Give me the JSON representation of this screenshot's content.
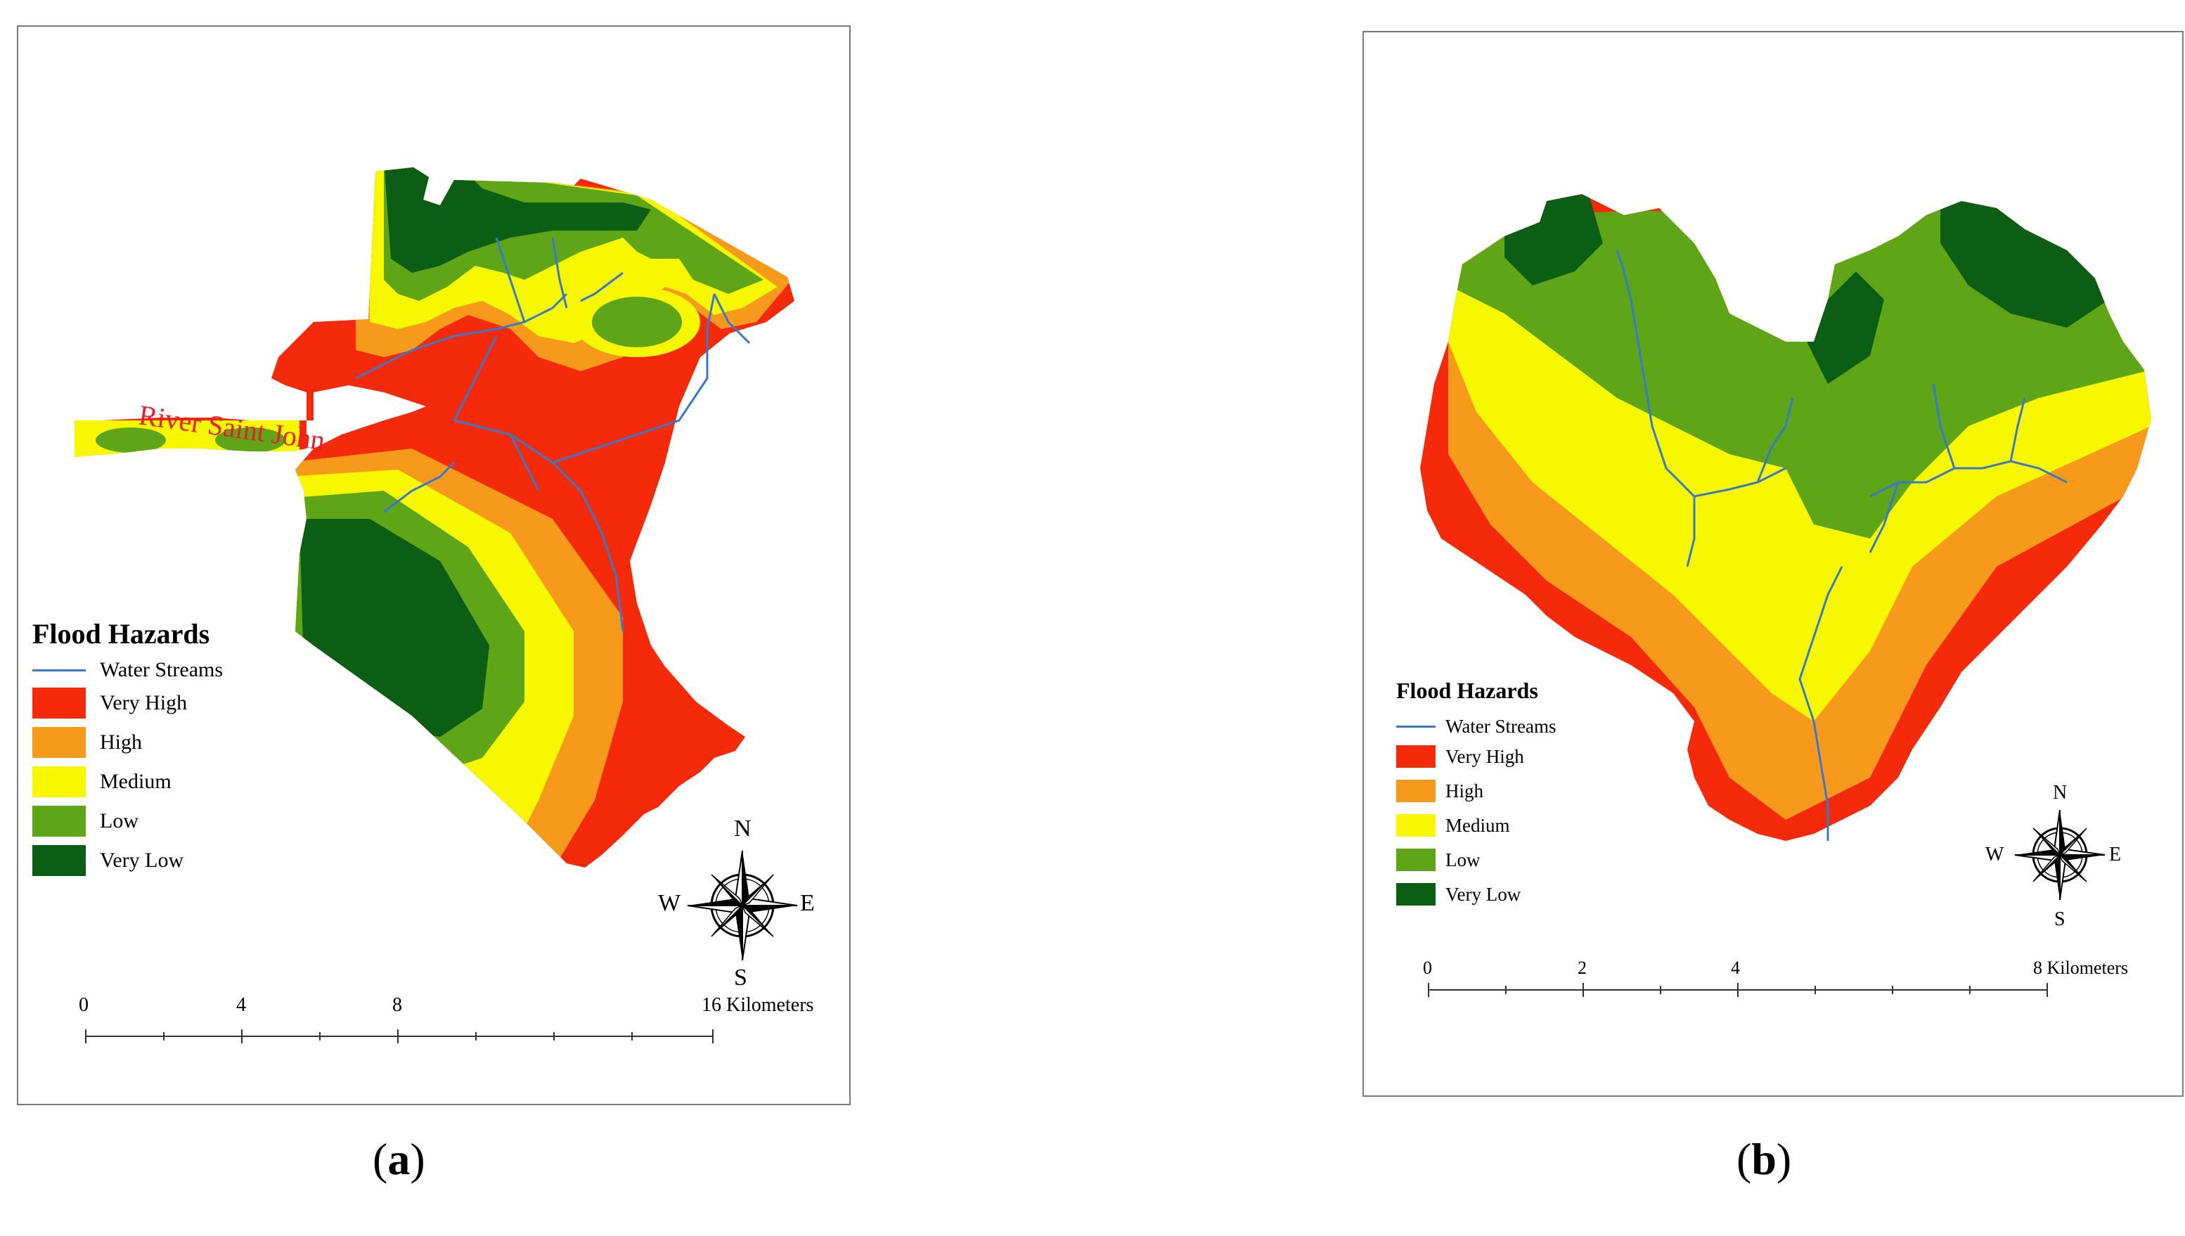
{
  "panels": [
    {
      "id": "a",
      "caption_open": "(",
      "caption_letter": "a",
      "caption_close": ")",
      "river_label": "River Saint John",
      "legend": {
        "title": "Flood Hazards",
        "stream_label": "Water Streams",
        "classes": [
          {
            "label": "Very High",
            "color": "#f52a0a"
          },
          {
            "label": "High",
            "color": "#f79a1c"
          },
          {
            "label": "Medium",
            "color": "#f7f700"
          },
          {
            "label": "Low",
            "color": "#5ea617"
          },
          {
            "label": "Very Low",
            "color": "#0b5e14"
          }
        ]
      },
      "compass": {
        "n": "N",
        "s": "S",
        "e": "E",
        "w": "W"
      },
      "scale_bar": {
        "ticks": [
          "0",
          "4",
          "8",
          "16 Kilometers"
        ]
      }
    },
    {
      "id": "b",
      "caption_open": "(",
      "caption_letter": "b",
      "caption_close": ")",
      "legend": {
        "title": "Flood Hazards",
        "stream_label": "Water Streams",
        "classes": [
          {
            "label": "Very High",
            "color": "#f52a0a"
          },
          {
            "label": "High",
            "color": "#f79a1c"
          },
          {
            "label": "Medium",
            "color": "#f7f700"
          },
          {
            "label": "Low",
            "color": "#5ea617"
          },
          {
            "label": "Very Low",
            "color": "#0b5e14"
          }
        ]
      },
      "compass": {
        "n": "N",
        "s": "S",
        "e": "E",
        "w": "W"
      },
      "scale_bar": {
        "ticks": [
          "0",
          "2",
          "4",
          "8 Kilometers"
        ]
      }
    }
  ],
  "colors": {
    "stream": "#3a78c9",
    "river_label": "#e8202a",
    "frame": "#7a7a7a"
  }
}
